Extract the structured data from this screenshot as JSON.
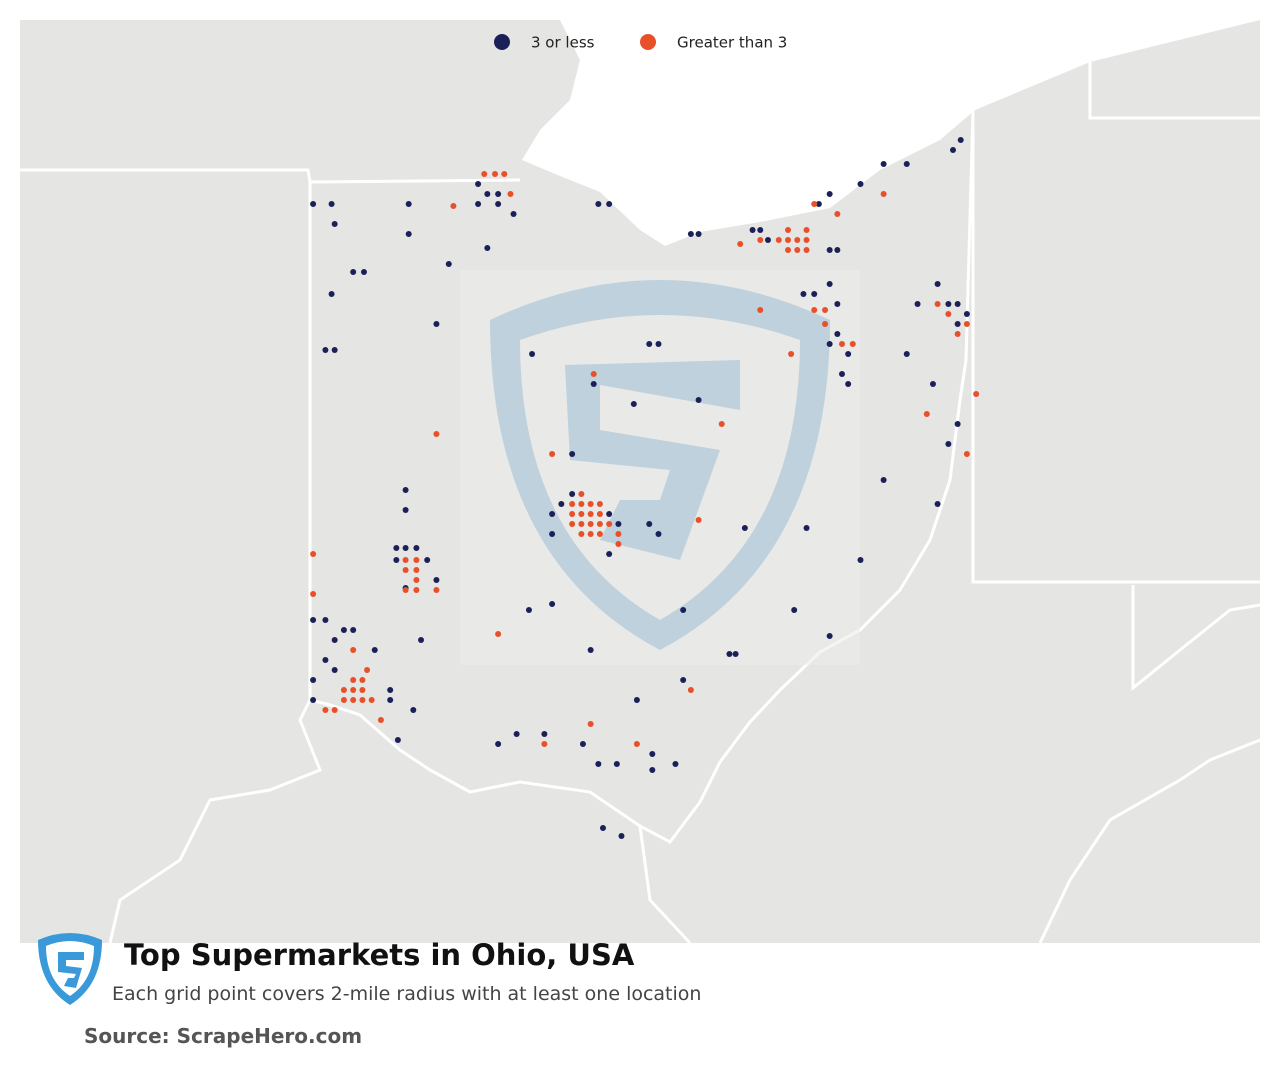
{
  "chart_data": {
    "type": "map",
    "title": "Top Supermarkets in Ohio, USA",
    "subtitle": "Each grid point covers 2-mile radius with at least one location",
    "source": "Source: ScrapeHero.com",
    "legend": "top",
    "series": [
      {
        "name": "3 or less",
        "color": "#1b2158",
        "lon": [
          -83.73,
          -83.67,
          -83.6,
          -83.73,
          -83.6,
          -83.5,
          -83.67,
          -84.8,
          -84.68,
          -84.66,
          -84.18,
          -84.18,
          -84.54,
          -84.47,
          -84.68,
          -83.92,
          -84.0,
          -84.72,
          -84.66,
          -83.25,
          -83.19,
          -83.12,
          -82.88,
          -82.82,
          -83.25,
          -82.88,
          -82.62,
          -82.56,
          -82.95,
          -82.88,
          -82.35,
          -82.3,
          -82.62,
          -82.56,
          -83.38,
          -82.98,
          -83.12,
          -82.72,
          -82.3,
          -81.95,
          -81.9,
          -81.85,
          -81.45,
          -81.4,
          -81.52,
          -81.45,
          -81.25,
          -81.1,
          -80.6,
          -80.65,
          -80.95,
          -81.62,
          -81.55,
          -81.4,
          -81.45,
          -81.4,
          -81.33,
          -81.37,
          -81.33,
          -81.45,
          -80.75,
          -80.68,
          -80.62,
          -80.62,
          -80.56,
          -80.88,
          -80.95,
          -80.78,
          -80.68,
          -80.75,
          -80.62,
          -84.26,
          -84.2,
          -84.13,
          -84.26,
          -84.06,
          -84.2,
          -84.2,
          -84.0,
          -84.2,
          -84.8,
          -84.72,
          -84.6,
          -84.54,
          -84.66,
          -84.72,
          -84.8,
          -84.8,
          -84.66,
          -84.3,
          -84.3,
          -84.4,
          -84.15,
          -84.1,
          -84.25,
          -83.6,
          -83.48,
          -83.3,
          -83.05,
          -82.95,
          -82.83,
          -82.6,
          -82.45,
          -82.92,
          -82.8,
          -82.6,
          -82.4,
          -82.1,
          -82.06,
          -81.45,
          -81.68,
          -82.0,
          -81.6,
          -81.25,
          -81.1,
          -83.4,
          -82.4,
          -83.0,
          -82.7,
          -83.25
        ],
        "lat": [
          41.68,
          41.63,
          41.63,
          41.58,
          41.58,
          41.53,
          41.36,
          41.58,
          41.58,
          41.48,
          41.58,
          41.43,
          41.24,
          41.24,
          41.13,
          41.28,
          40.98,
          40.85,
          40.85,
          40.03,
          40.08,
          40.13,
          40.03,
          39.98,
          39.93,
          39.83,
          39.98,
          39.93,
          41.58,
          41.58,
          41.43,
          41.43,
          40.88,
          40.88,
          40.83,
          40.68,
          40.33,
          40.58,
          40.6,
          41.45,
          41.45,
          41.4,
          41.35,
          41.35,
          41.58,
          41.63,
          41.68,
          41.78,
          41.9,
          41.85,
          41.78,
          41.13,
          41.13,
          41.08,
          41.18,
          40.93,
          40.83,
          40.73,
          40.68,
          40.88,
          41.18,
          41.08,
          41.08,
          40.98,
          41.03,
          41.08,
          40.83,
          40.68,
          40.38,
          40.08,
          40.48,
          39.86,
          39.86,
          39.86,
          39.8,
          39.8,
          40.05,
          40.15,
          39.7,
          39.66,
          39.5,
          39.5,
          39.45,
          39.45,
          39.4,
          39.3,
          39.2,
          39.1,
          39.25,
          39.15,
          39.1,
          39.35,
          39.05,
          39.4,
          38.9,
          38.88,
          38.93,
          38.93,
          38.88,
          38.78,
          38.78,
          38.75,
          38.78,
          38.46,
          38.42,
          38.83,
          39.2,
          39.33,
          39.33,
          39.42,
          39.55,
          39.96,
          39.96,
          39.8,
          40.2,
          39.55,
          39.55,
          39.35,
          39.1,
          39.58
        ]
      },
      {
        "name": "Greater than 3",
        "color": "#e8502a",
        "lon": [
          -83.69,
          -83.62,
          -83.56,
          -83.52,
          -83.89,
          -83.06,
          -83.12,
          -83.06,
          -83.0,
          -82.94,
          -83.12,
          -83.06,
          -83.0,
          -82.94,
          -83.12,
          -83.06,
          -83.0,
          -82.94,
          -82.88,
          -83.06,
          -83.0,
          -82.94,
          -82.82,
          -82.82,
          -84.2,
          -84.13,
          -84.2,
          -84.13,
          -84.13,
          -84.2,
          -84.13,
          -84.0,
          -84.54,
          -84.48,
          -84.6,
          -84.54,
          -84.48,
          -84.6,
          -84.54,
          -84.48,
          -84.42,
          -84.72,
          -84.66,
          -84.54,
          -84.36,
          -84.45,
          -82.03,
          -81.9,
          -81.78,
          -81.72,
          -81.66,
          -81.6,
          -81.72,
          -81.66,
          -81.6,
          -81.72,
          -81.6,
          -81.4,
          -81.55,
          -81.1,
          -81.55,
          -81.48,
          -81.48,
          -81.37,
          -81.3,
          -80.75,
          -80.68,
          -80.56,
          -80.62,
          -80.5,
          -80.56,
          -80.82,
          -84.0,
          -84.8,
          -84.8,
          -83.6,
          -82.98,
          -83.25,
          -82.3,
          -83.3,
          -83.0,
          -82.7,
          -82.35,
          -81.9,
          -81.7,
          -82.15
        ],
        "lat": [
          41.73,
          41.73,
          41.73,
          41.63,
          41.57,
          40.13,
          40.08,
          40.08,
          40.08,
          40.08,
          40.03,
          40.03,
          40.03,
          40.03,
          39.98,
          39.98,
          39.98,
          39.98,
          39.98,
          39.93,
          39.93,
          39.93,
          39.93,
          39.88,
          39.8,
          39.8,
          39.75,
          39.75,
          39.7,
          39.65,
          39.65,
          39.65,
          39.2,
          39.2,
          39.15,
          39.15,
          39.15,
          39.1,
          39.1,
          39.1,
          39.1,
          39.05,
          39.05,
          39.35,
          39.0,
          39.25,
          41.38,
          41.4,
          41.4,
          41.4,
          41.4,
          41.4,
          41.35,
          41.35,
          41.35,
          41.45,
          41.45,
          41.53,
          41.58,
          41.63,
          41.05,
          41.05,
          40.98,
          40.88,
          40.88,
          41.08,
          41.03,
          40.98,
          40.93,
          40.63,
          40.33,
          40.53,
          40.43,
          39.83,
          39.63,
          39.43,
          40.73,
          40.33,
          40.0,
          38.88,
          38.98,
          38.88,
          39.15,
          41.05,
          40.83,
          40.48
        ]
      }
    ]
  }
}
